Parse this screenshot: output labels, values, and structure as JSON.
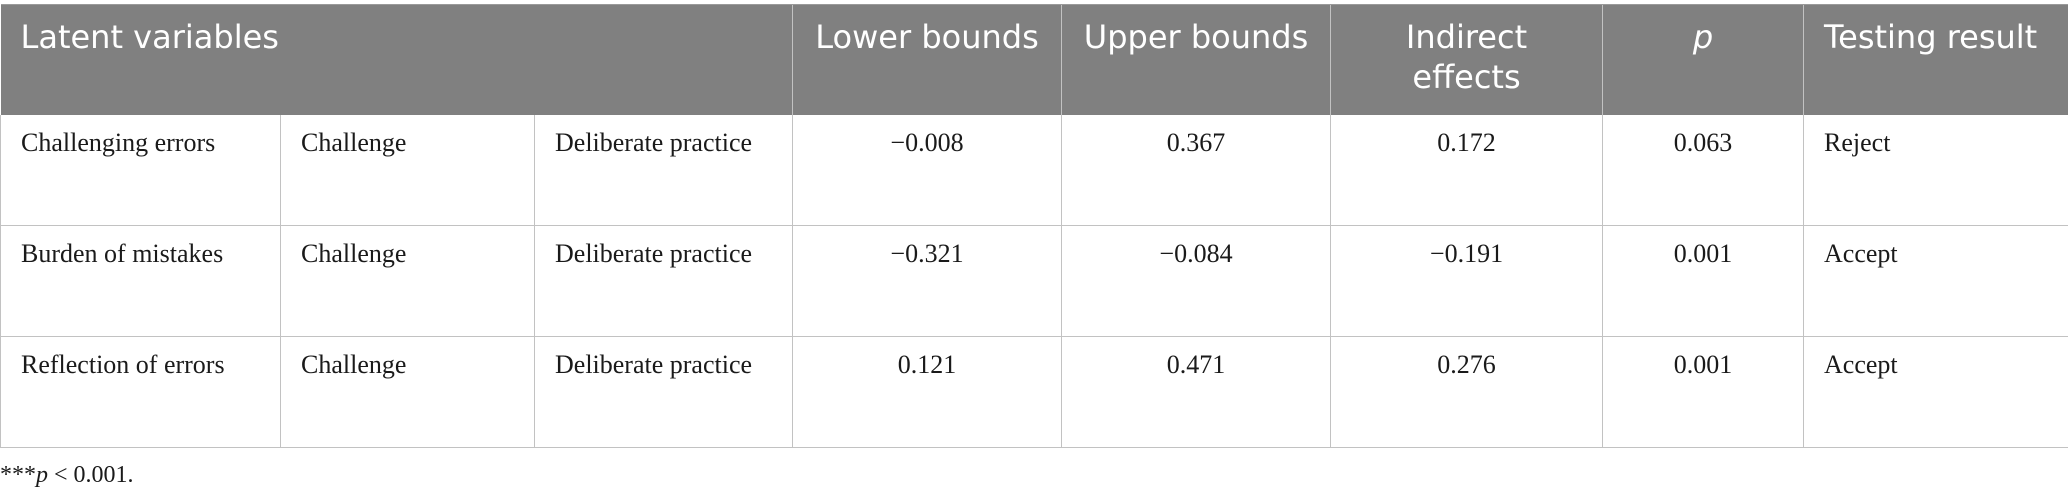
{
  "table": {
    "headers": {
      "latent_variables": "Latent variables",
      "lower_bounds": "Lower bounds",
      "upper_bounds": "Upper bounds",
      "indirect_effects": "Indirect effects",
      "p": "p",
      "testing_result": "Testing result"
    },
    "rows": [
      {
        "variable": "Challenging errors",
        "mediator": "Challenge",
        "outcome": "Deliberate practice",
        "lower": "−0.008",
        "upper": "0.367",
        "indirect": "0.172",
        "p": "0.063",
        "result": "Reject"
      },
      {
        "variable": "Burden of mistakes",
        "mediator": "Challenge",
        "outcome": "Deliberate practice",
        "lower": "−0.321",
        "upper": "−0.084",
        "indirect": "−0.191",
        "p": "0.001",
        "result": "Accept"
      },
      {
        "variable": "Reflection of errors",
        "mediator": "Challenge",
        "outcome": "Deliberate practice",
        "lower": "0.121",
        "upper": "0.471",
        "indirect": "0.276",
        "p": "0.001",
        "result": "Accept"
      }
    ]
  },
  "footnote": {
    "stars": "***",
    "p": "p",
    "text": " < 0.001."
  }
}
